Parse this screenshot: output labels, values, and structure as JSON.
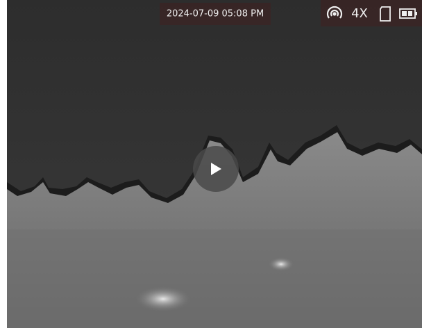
{
  "status_bar": {
    "timestamp": "2024-07-09 05:08 PM",
    "zoom": "4X"
  }
}
